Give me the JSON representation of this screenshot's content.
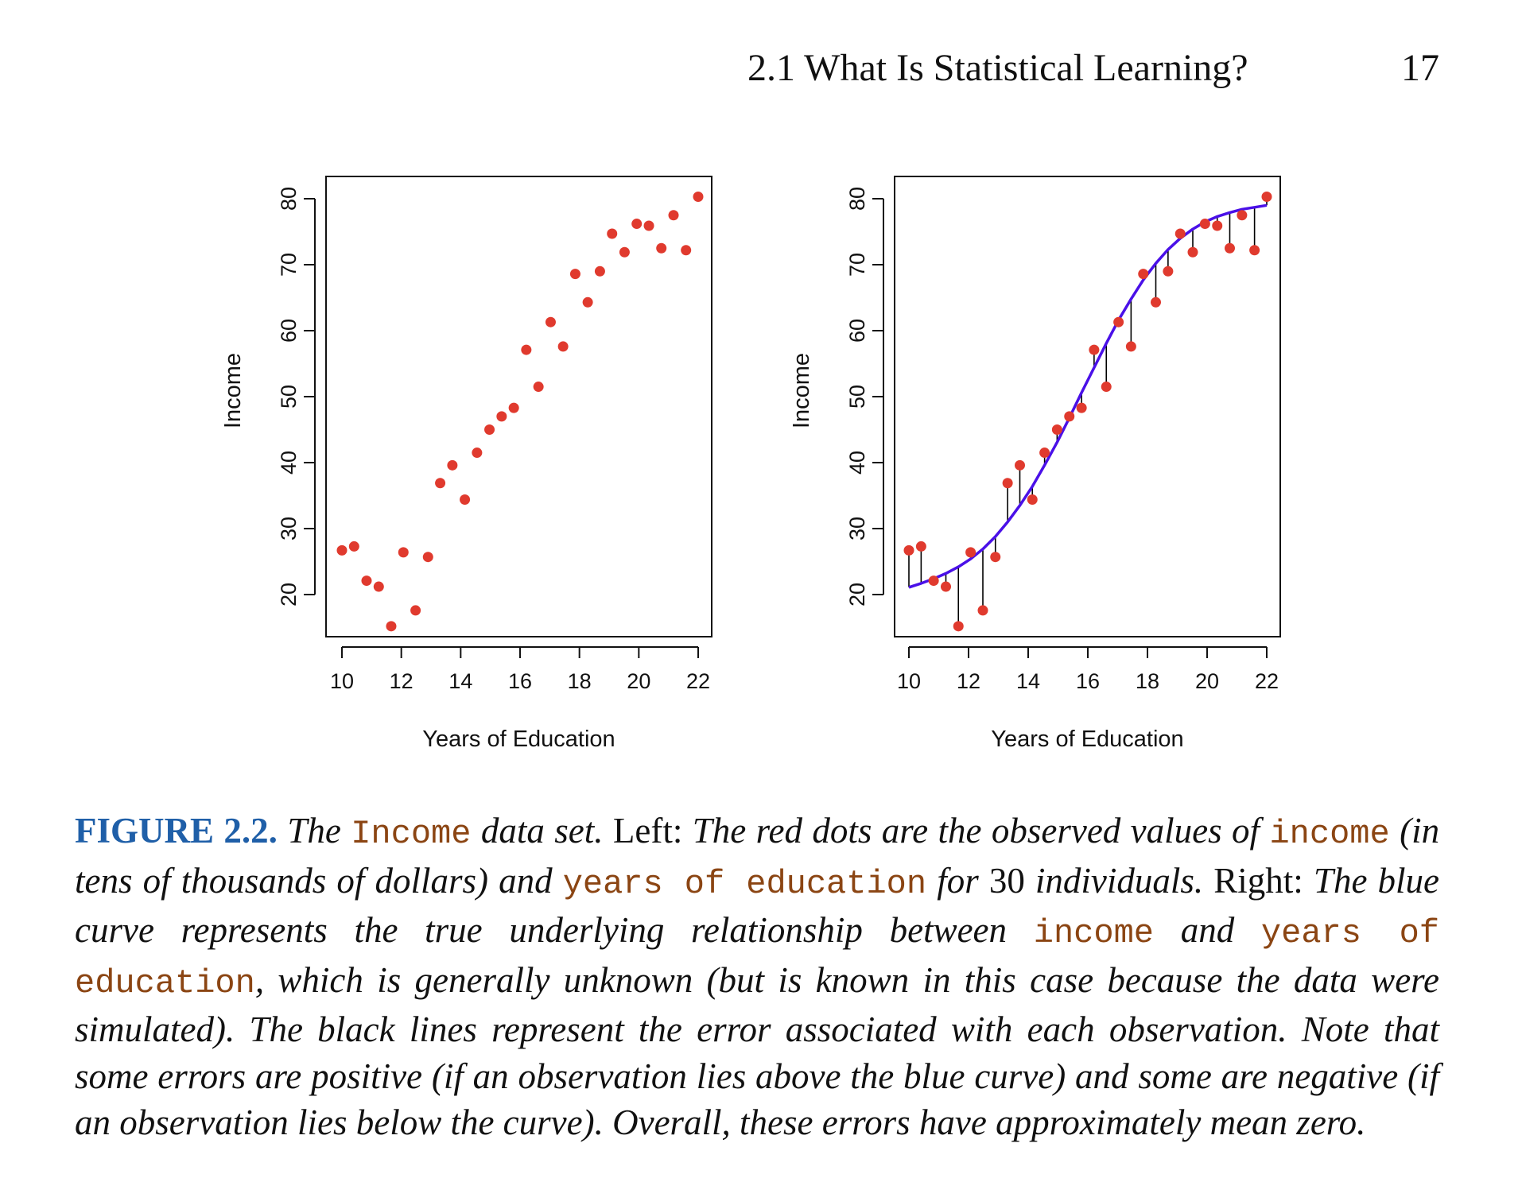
{
  "running_head": {
    "section_title": "2.1 What Is Statistical Learning?",
    "page_number": "17"
  },
  "chart_data": [
    {
      "type": "scatter",
      "panel": "left",
      "xlabel": "Years of Education",
      "ylabel": "Income",
      "xlim": [
        10,
        22
      ],
      "ylim": [
        15,
        80
      ],
      "xticks": [
        10,
        12,
        14,
        16,
        18,
        20,
        22
      ],
      "yticks": [
        20,
        30,
        40,
        50,
        60,
        70,
        80
      ],
      "grid": false,
      "point_color": "#e03a2e",
      "x": [
        10.0,
        10.41,
        10.83,
        11.24,
        11.66,
        12.07,
        12.48,
        12.9,
        13.31,
        13.72,
        14.14,
        14.55,
        14.97,
        15.38,
        15.79,
        16.21,
        16.62,
        17.03,
        17.45,
        17.86,
        18.28,
        18.69,
        19.1,
        19.52,
        19.93,
        20.34,
        20.76,
        21.17,
        21.59,
        22.0
      ],
      "y": [
        26.7,
        27.3,
        22.1,
        21.2,
        15.2,
        26.4,
        17.6,
        25.7,
        36.9,
        39.6,
        34.4,
        41.5,
        45.0,
        47.0,
        48.3,
        57.1,
        51.5,
        61.3,
        57.6,
        68.6,
        64.3,
        69.0,
        74.7,
        71.9,
        76.2,
        75.9,
        72.5,
        77.5,
        72.2,
        80.3
      ]
    },
    {
      "type": "scatter",
      "panel": "right",
      "xlabel": "Years of Education",
      "ylabel": "Income",
      "xlim": [
        10,
        22
      ],
      "ylim": [
        15,
        80
      ],
      "xticks": [
        10,
        12,
        14,
        16,
        18,
        20,
        22
      ],
      "yticks": [
        20,
        30,
        40,
        50,
        60,
        70,
        80
      ],
      "grid": false,
      "point_color": "#e03a2e",
      "curve_color": "#4a10e8",
      "error_line_color": "#000000",
      "x": [
        10.0,
        10.41,
        10.83,
        11.24,
        11.66,
        12.07,
        12.48,
        12.9,
        13.31,
        13.72,
        14.14,
        14.55,
        14.97,
        15.38,
        15.79,
        16.21,
        16.62,
        17.03,
        17.45,
        17.86,
        18.28,
        18.69,
        19.1,
        19.52,
        19.93,
        20.34,
        20.76,
        21.17,
        21.59,
        22.0
      ],
      "y": [
        26.7,
        27.3,
        22.1,
        21.2,
        15.2,
        26.4,
        17.6,
        25.7,
        36.9,
        39.6,
        34.4,
        41.5,
        45.0,
        47.0,
        48.3,
        57.1,
        51.5,
        61.3,
        57.6,
        68.6,
        64.3,
        69.0,
        74.7,
        71.9,
        76.2,
        75.9,
        72.5,
        77.5,
        72.2,
        80.3
      ],
      "true_curve_y": [
        21.1,
        21.7,
        22.4,
        23.2,
        24.2,
        25.4,
        26.9,
        28.8,
        31.0,
        33.5,
        36.4,
        39.6,
        43.1,
        46.8,
        50.6,
        54.4,
        58.1,
        61.6,
        64.8,
        67.7,
        70.2,
        72.3,
        74.0,
        75.4,
        76.5,
        77.3,
        77.9,
        78.4,
        78.7,
        79.0
      ]
    }
  ],
  "caption": {
    "label": "FIGURE 2.2.",
    "t1": "The",
    "c1": "Income",
    "t2": "data set.",
    "t3": "Left:",
    "t4": "The red dots are the observed values of",
    "c2": "income",
    "t5": "(in tens of thousands of dollars) and",
    "c3": "years of education",
    "t6": "for",
    "t7": "30",
    "t8": "individuals.",
    "t9": "Right:",
    "t10": "The blue curve represents the true underlying relationship between",
    "c4": "income",
    "t11": "and",
    "c5": "years of education",
    "t12": ", which is generally unknown (but is known in this case because the data were simulated). The black lines represent the error associated with each observation. Note that some errors are positive (if an observation lies above the blue curve) and some are negative (if an observation lies below the curve). Overall, these errors have approximately mean zero."
  }
}
